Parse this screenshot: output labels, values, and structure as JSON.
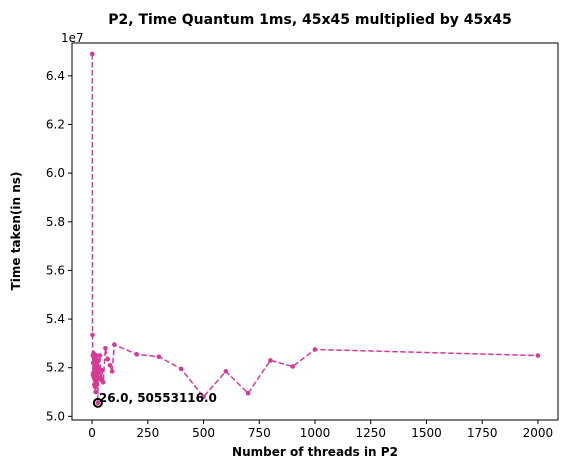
{
  "chart_data": {
    "type": "line",
    "title": "P2, Time Quantum 1ms, 45x45 multiplied by 45x45",
    "xlabel": "Number of threads in P2",
    "ylabel": "Time taken(in ns)",
    "y_offset_label": "1e7",
    "xlim": [
      -90,
      2090
    ],
    "ylim": [
      49850000,
      65350000
    ],
    "x_ticks": [
      0,
      250,
      500,
      750,
      1000,
      1250,
      1500,
      1750,
      2000
    ],
    "y_ticks": [
      50000000,
      52000000,
      54000000,
      56000000,
      58000000,
      60000000,
      62000000,
      64000000
    ],
    "y_tick_labels": [
      "5.0",
      "5.2",
      "5.4",
      "5.6",
      "5.8",
      "6.0",
      "6.2",
      "6.4"
    ],
    "line_color": "#d63a96",
    "line_style": "dashed",
    "marker": "circle",
    "grid": false,
    "series": [
      {
        "x": [
          1,
          2,
          3,
          4,
          5,
          6,
          7,
          8,
          9,
          10,
          11,
          12,
          13,
          14,
          15,
          16,
          17,
          18,
          19,
          20,
          21,
          22,
          23,
          24,
          25,
          26,
          27,
          28,
          29,
          30,
          35,
          40,
          45,
          50,
          60,
          70,
          80,
          90,
          100,
          200,
          300,
          400,
          500,
          600,
          700,
          800,
          900,
          1000,
          2000
        ],
        "y": [
          64900000,
          53350000,
          52500000,
          51700000,
          52200000,
          51800000,
          52600000,
          51600000,
          52400000,
          51300000,
          52300000,
          51500000,
          52500000,
          51200000,
          52100000,
          51000000,
          52400000,
          51700000,
          51900000,
          51400000,
          52200000,
          51300000,
          52500000,
          51700000,
          52000000,
          50553116,
          51800000,
          52300000,
          51600000,
          51900000,
          52500000,
          51500000,
          51900000,
          51400000,
          52800000,
          52350000,
          52100000,
          51850000,
          52950000,
          52550000,
          52450000,
          51950000,
          50800000,
          51850000,
          50950000,
          52300000,
          52050000,
          52750000,
          52500000
        ]
      }
    ],
    "highlight": {
      "x": 26,
      "y": 50553116,
      "label": "26.0, 50553116.0"
    }
  }
}
